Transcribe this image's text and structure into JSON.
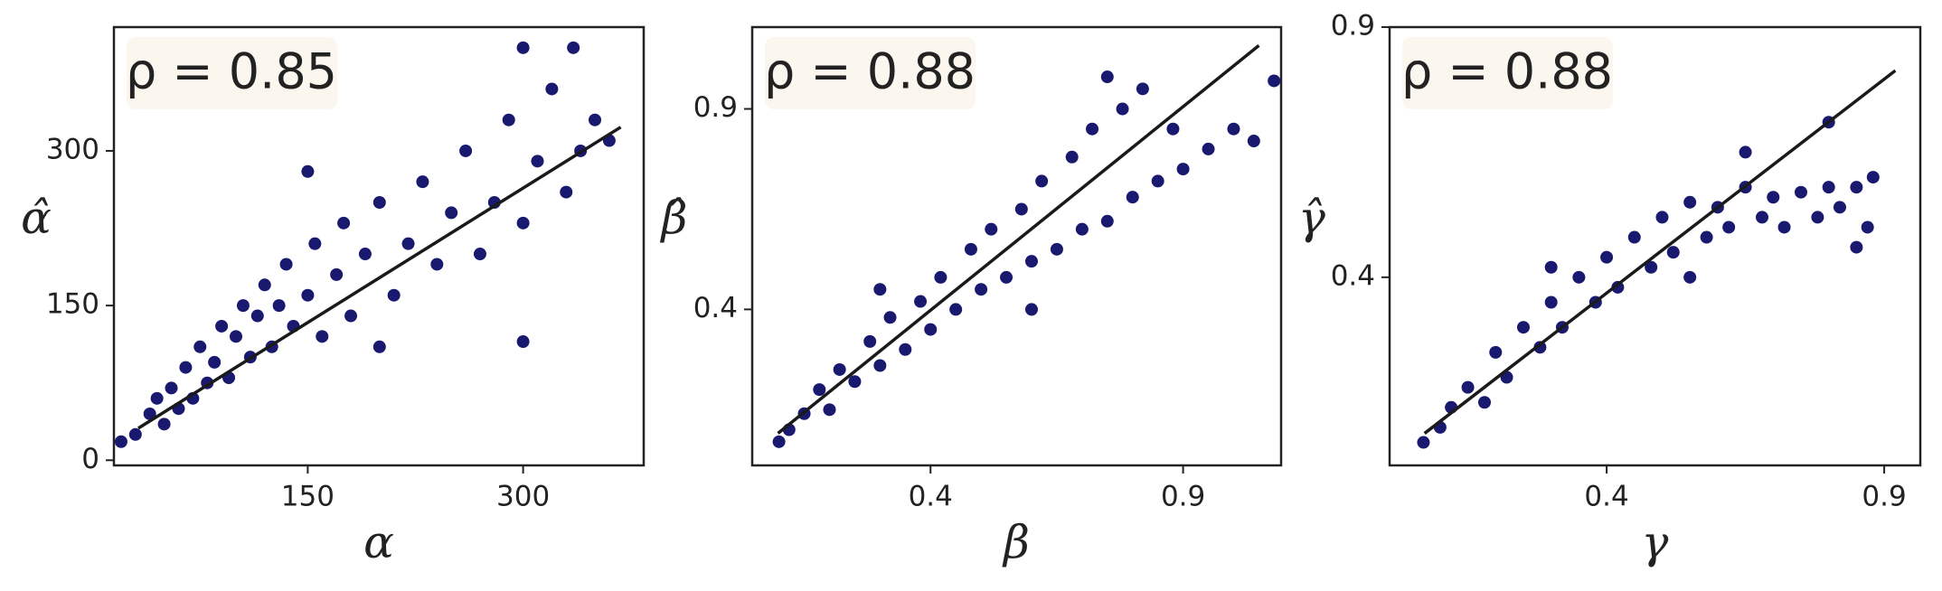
{
  "chart_data": [
    {
      "type": "scatter",
      "annotation": "ρ = 0.85",
      "x_label": "α",
      "y_label": "α̂",
      "xlim": [
        15,
        384
      ],
      "ylim": [
        -5,
        420
      ],
      "xticks": [
        150,
        300
      ],
      "yticks": [
        0,
        150,
        300
      ],
      "series": [
        {
          "color": "#191970",
          "x": [
            20,
            30,
            40,
            45,
            50,
            55,
            60,
            65,
            70,
            75,
            80,
            85,
            90,
            95,
            100,
            105,
            110,
            115,
            120,
            125,
            130,
            135,
            140,
            150,
            155,
            160,
            170,
            175,
            180,
            190,
            200,
            210,
            220,
            230,
            240,
            250,
            260,
            270,
            280,
            290,
            300,
            310,
            320,
            330,
            340,
            350,
            360,
            300,
            200,
            150,
            335,
            300
          ],
          "y": [
            18,
            25,
            45,
            60,
            35,
            70,
            50,
            90,
            60,
            110,
            75,
            95,
            130,
            80,
            120,
            150,
            100,
            140,
            170,
            110,
            150,
            190,
            130,
            160,
            210,
            120,
            180,
            230,
            140,
            200,
            250,
            160,
            210,
            270,
            190,
            240,
            300,
            200,
            250,
            330,
            230,
            290,
            360,
            260,
            300,
            330,
            310,
            115,
            110,
            280,
            400,
            400
          ]
        }
      ],
      "fit_line": {
        "color": "#1a1a1a",
        "x": [
          32,
          368
        ],
        "y": [
          31,
          323
        ]
      }
    },
    {
      "type": "scatter",
      "annotation": "ρ = 0.88",
      "x_label": "β",
      "y_label": "β̂",
      "xlim": [
        0.047,
        1.094
      ],
      "ylim": [
        0.011,
        1.104
      ],
      "xticks": [
        0.4,
        0.9
      ],
      "yticks": [
        0.4,
        0.9
      ],
      "series": [
        {
          "color": "#191970",
          "x": [
            0.1,
            0.12,
            0.15,
            0.18,
            0.2,
            0.22,
            0.25,
            0.28,
            0.3,
            0.32,
            0.35,
            0.38,
            0.4,
            0.42,
            0.45,
            0.48,
            0.5,
            0.52,
            0.55,
            0.58,
            0.6,
            0.62,
            0.65,
            0.68,
            0.7,
            0.72,
            0.75,
            0.78,
            0.8,
            0.82,
            0.85,
            0.88,
            0.9,
            0.95,
            1.0,
            1.04,
            1.08,
            0.75,
            0.3,
            0.6
          ],
          "y": [
            0.07,
            0.1,
            0.14,
            0.2,
            0.15,
            0.25,
            0.22,
            0.32,
            0.26,
            0.38,
            0.3,
            0.42,
            0.35,
            0.48,
            0.4,
            0.55,
            0.45,
            0.6,
            0.48,
            0.65,
            0.52,
            0.72,
            0.55,
            0.78,
            0.6,
            0.85,
            0.62,
            0.9,
            0.68,
            0.95,
            0.72,
            0.85,
            0.75,
            0.8,
            0.85,
            0.82,
            0.97,
            0.98,
            0.45,
            0.4
          ]
        }
      ],
      "fit_line": {
        "color": "#1a1a1a",
        "x": [
          0.098,
          1.05
        ],
        "y": [
          0.091,
          1.058
        ]
      }
    },
    {
      "type": "scatter",
      "annotation": "ρ = 0.88",
      "x_label": "γ",
      "y_label": "γ̂",
      "xlim": [
        0.009,
        0.965
      ],
      "ylim": [
        0.024,
        0.9
      ],
      "xticks": [
        0.4,
        0.9
      ],
      "yticks": [
        0.4,
        0.9
      ],
      "series": [
        {
          "color": "#191970",
          "x": [
            0.07,
            0.1,
            0.12,
            0.15,
            0.18,
            0.2,
            0.22,
            0.25,
            0.28,
            0.3,
            0.32,
            0.35,
            0.38,
            0.4,
            0.42,
            0.45,
            0.48,
            0.5,
            0.52,
            0.55,
            0.58,
            0.6,
            0.62,
            0.65,
            0.68,
            0.7,
            0.72,
            0.75,
            0.78,
            0.8,
            0.82,
            0.85,
            0.87,
            0.88,
            0.85,
            0.8,
            0.65,
            0.3,
            0.55
          ],
          "y": [
            0.07,
            0.1,
            0.14,
            0.18,
            0.15,
            0.25,
            0.2,
            0.3,
            0.26,
            0.35,
            0.3,
            0.4,
            0.35,
            0.44,
            0.38,
            0.48,
            0.42,
            0.52,
            0.45,
            0.55,
            0.48,
            0.54,
            0.5,
            0.58,
            0.52,
            0.56,
            0.5,
            0.57,
            0.52,
            0.58,
            0.54,
            0.58,
            0.5,
            0.6,
            0.46,
            0.71,
            0.65,
            0.42,
            0.4
          ]
        }
      ],
      "fit_line": {
        "color": "#1a1a1a",
        "x": [
          0.072,
          0.92
        ],
        "y": [
          0.088,
          0.813
        ]
      }
    }
  ]
}
